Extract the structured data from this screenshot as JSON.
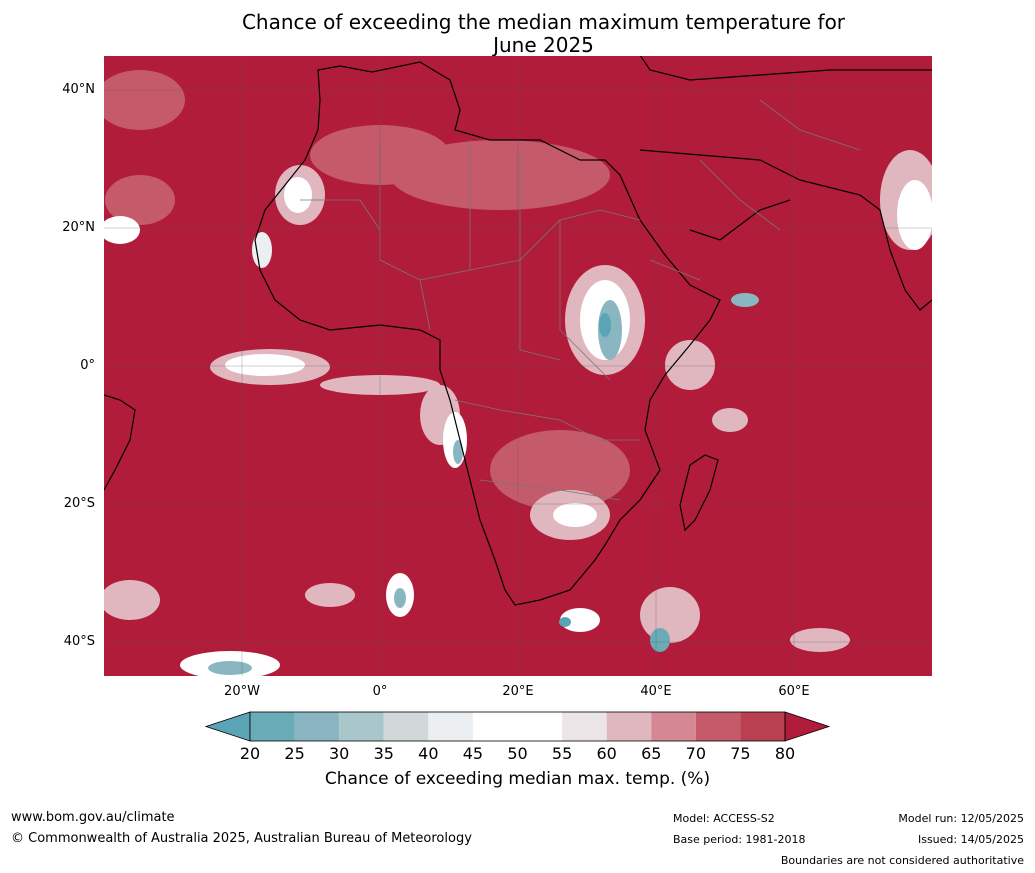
{
  "title": {
    "line1": "Chance of exceeding the median maximum temperature for",
    "line2": "June 2025"
  },
  "map": {
    "region": "Africa",
    "lat_labels": [
      "40°N",
      "20°N",
      "0°",
      "20°S",
      "40°S"
    ],
    "lon_labels": [
      "20°W",
      "0°",
      "20°E",
      "40°E",
      "60°E"
    ],
    "dominant_color": "#b11c3a",
    "ocean_fill": "#b11c3a"
  },
  "colorbar": {
    "ticks": [
      "20",
      "25",
      "30",
      "35",
      "40",
      "45",
      "50",
      "55",
      "60",
      "65",
      "70",
      "75",
      "80"
    ],
    "colors": [
      "#5aa5b5",
      "#6aabb8",
      "#8ab6c2",
      "#a9c6cb",
      "#d2d7da",
      "#eceff1",
      "#ffffff",
      "#ffffff",
      "#ebe5e8",
      "#e0b7bf",
      "#d38893",
      "#c55a6b",
      "#b94050",
      "#b11c3a"
    ],
    "label": "Chance of exceeding median max. temp. (%)"
  },
  "footer": {
    "url": "www.bom.gov.au/climate",
    "copyright": "© Commonwealth of Australia 2025, Australian Bureau of Meteorology",
    "model": "Model: ACCESS-S2",
    "base_period": "Base period: 1981-2018",
    "model_run": "Model run: 12/05/2025",
    "issued": "Issued: 14/05/2025",
    "disclaimer": "Boundaries are not considered authoritative"
  }
}
